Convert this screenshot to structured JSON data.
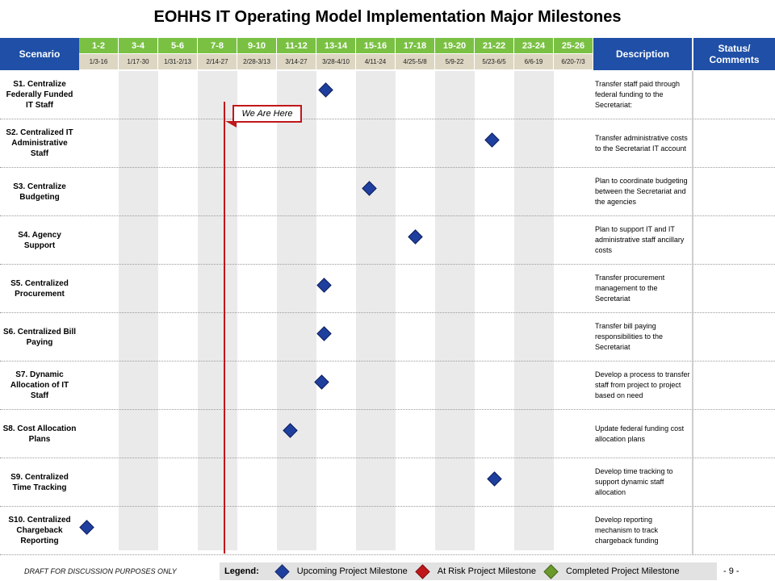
{
  "title": "EOHHS IT Operating Model Implementation Major Milestones",
  "headers": {
    "scenario": "Scenario",
    "description": "Description",
    "status_line1": "Status/",
    "status_line2": "Comments"
  },
  "weeks": [
    {
      "label": "1-2",
      "dates": "1/3-16"
    },
    {
      "label": "3-4",
      "dates": "1/17-30"
    },
    {
      "label": "5-6",
      "dates": "1/31-2/13"
    },
    {
      "label": "7-8",
      "dates": "2/14-27"
    },
    {
      "label": "9-10",
      "dates": "2/28-3/13"
    },
    {
      "label": "11-12",
      "dates": "3/14-27"
    },
    {
      "label": "13-14",
      "dates": "3/28-4/10"
    },
    {
      "label": "15-16",
      "dates": "4/11-24"
    },
    {
      "label": "17-18",
      "dates": "4/25-5/8"
    },
    {
      "label": "19-20",
      "dates": "5/9-22"
    },
    {
      "label": "21-22",
      "dates": "5/23-6/5"
    },
    {
      "label": "23-24",
      "dates": "6/6-19"
    },
    {
      "label": "25-26",
      "dates": "6/20-7/3"
    }
  ],
  "scenarios": [
    {
      "label": "S1. Centralize Federally Funded IT Staff",
      "description": "Transfer staff paid through federal funding to the Secretariat:",
      "milestone_week": 6.25,
      "status": "upcoming"
    },
    {
      "label": "S2. Centralized IT Administrative Staff",
      "description": "Transfer administrative costs to the Secretariat IT account",
      "milestone_week": 10.45,
      "status": "upcoming"
    },
    {
      "label": "S3. Centralize Budgeting",
      "description": "Plan to coordinate budgeting between the Secretariat and the agencies",
      "milestone_week": 7.35,
      "status": "upcoming"
    },
    {
      "label": "S4. Agency Support",
      "description": "Plan to support IT and IT administrative staff ancillary costs",
      "milestone_week": 8.5,
      "status": "upcoming"
    },
    {
      "label": "S5. Centralized Procurement",
      "description": "Transfer procurement management to the Secretariat",
      "milestone_week": 6.2,
      "status": "upcoming"
    },
    {
      "label": "S6. Centralized Bill Paying",
      "description": "Transfer bill paying responsibilities to the Secretariat",
      "milestone_week": 6.2,
      "status": "upcoming"
    },
    {
      "label": "S7. Dynamic Allocation of IT Staff",
      "description": "Develop a process to transfer staff from project to project based on need",
      "milestone_week": 6.15,
      "status": "upcoming"
    },
    {
      "label": "S8. Cost Allocation Plans",
      "description": "Update federal funding cost allocation plans",
      "milestone_week": 5.35,
      "status": "upcoming"
    },
    {
      "label": "S9. Centralized Time Tracking",
      "description": "Develop time tracking to support dynamic staff allocation",
      "milestone_week": 10.5,
      "status": "upcoming"
    },
    {
      "label": "S10. Centralized Chargeback Reporting",
      "description": "Develop reporting mechanism to track chargeback funding",
      "milestone_week": 0.2,
      "status": "upcoming"
    }
  ],
  "current_week": 3.65,
  "callout": "We Are Here",
  "legend": {
    "title": "Legend:",
    "items": [
      {
        "label": "Upcoming Project Milestone",
        "color": "#1f3f9e",
        "icon": "diamond-blue-icon"
      },
      {
        "label": "At Risk Project Milestone",
        "color": "#c0161a",
        "icon": "diamond-red-icon"
      },
      {
        "label": "Completed Project Milestone",
        "color": "#6a9a2a",
        "icon": "diamond-green-icon"
      }
    ]
  },
  "footer": {
    "draft_note": "DRAFT FOR DISCUSSION PURPOSES ONLY",
    "page": "- 9 -"
  },
  "colors": {
    "header_blue": "#1f4fa6",
    "week_green": "#7ac143",
    "date_tan": "#ddd6c2",
    "current_line_red": "#c0161a"
  }
}
